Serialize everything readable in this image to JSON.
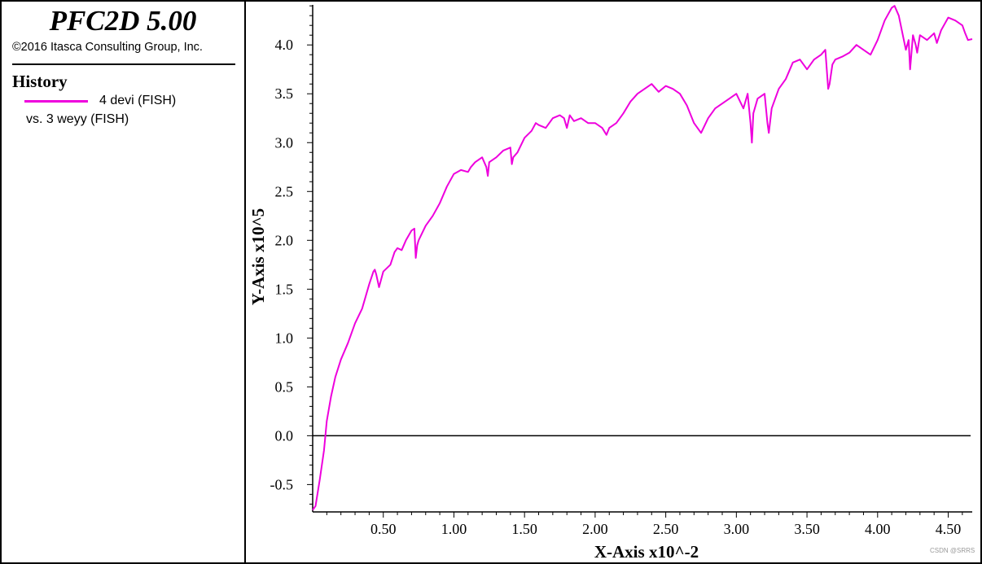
{
  "app": {
    "title": "PFC2D 5.00",
    "copyright": "©2016 Itasca Consulting Group, Inc."
  },
  "legend": {
    "heading": "History",
    "series_label": "4 devi (FISH)",
    "vs_label": "vs. 3 weyy (FISH)",
    "series_color": "#ee00dd"
  },
  "watermark": "CSDN @SRRS",
  "chart_data": {
    "type": "line",
    "xlabel": "X-Axis x10^-2",
    "ylabel": "Y-Axis x10^5",
    "xlim": [
      0,
      4.67
    ],
    "ylim": [
      -0.78,
      4.41
    ],
    "x_ticks": [
      0.5,
      1.0,
      1.5,
      2.0,
      2.5,
      3.0,
      3.5,
      4.0,
      4.5
    ],
    "x_tick_labels": [
      "0.50",
      "1.00",
      "1.50",
      "2.00",
      "2.50",
      "3.00",
      "3.50",
      "4.00",
      "4.50"
    ],
    "y_ticks": [
      -0.5,
      0.0,
      0.5,
      1.0,
      1.5,
      2.0,
      2.5,
      3.0,
      3.5,
      4.0
    ],
    "y_tick_labels": [
      "-0.5",
      "0.0",
      "0.5",
      "1.0",
      "1.5",
      "2.0",
      "2.5",
      "3.0",
      "3.5",
      "4.0"
    ],
    "zero_line": 0,
    "grid": false,
    "series": [
      {
        "color": "#ee00dd",
        "x": [
          0.0,
          0.02,
          0.05,
          0.08,
          0.1,
          0.13,
          0.16,
          0.2,
          0.25,
          0.3,
          0.35,
          0.4,
          0.43,
          0.44,
          0.45,
          0.47,
          0.5,
          0.55,
          0.58,
          0.6,
          0.63,
          0.66,
          0.7,
          0.72,
          0.73,
          0.74,
          0.75,
          0.8,
          0.85,
          0.9,
          0.95,
          1.0,
          1.05,
          1.1,
          1.12,
          1.15,
          1.2,
          1.23,
          1.24,
          1.25,
          1.3,
          1.35,
          1.4,
          1.41,
          1.42,
          1.45,
          1.5,
          1.55,
          1.58,
          1.6,
          1.65,
          1.7,
          1.75,
          1.78,
          1.8,
          1.82,
          1.85,
          1.9,
          1.95,
          2.0,
          2.05,
          2.08,
          2.1,
          2.15,
          2.2,
          2.25,
          2.3,
          2.35,
          2.4,
          2.45,
          2.5,
          2.55,
          2.6,
          2.65,
          2.7,
          2.75,
          2.8,
          2.85,
          2.9,
          2.95,
          3.0,
          3.05,
          3.08,
          3.1,
          3.11,
          3.12,
          3.15,
          3.2,
          3.22,
          3.23,
          3.25,
          3.3,
          3.35,
          3.4,
          3.45,
          3.5,
          3.55,
          3.6,
          3.63,
          3.65,
          3.66,
          3.68,
          3.7,
          3.75,
          3.8,
          3.85,
          3.9,
          3.95,
          4.0,
          4.05,
          4.1,
          4.12,
          4.15,
          4.2,
          4.22,
          4.23,
          4.25,
          4.27,
          4.28,
          4.3,
          4.35,
          4.4,
          4.42,
          4.45,
          4.5,
          4.55,
          4.6,
          4.62,
          4.64,
          4.67
        ],
        "y": [
          -0.76,
          -0.72,
          -0.45,
          -0.15,
          0.15,
          0.4,
          0.6,
          0.78,
          0.95,
          1.15,
          1.3,
          1.55,
          1.68,
          1.7,
          1.65,
          1.52,
          1.68,
          1.75,
          1.88,
          1.92,
          1.9,
          2.0,
          2.1,
          2.12,
          1.82,
          1.95,
          2.0,
          2.15,
          2.25,
          2.38,
          2.55,
          2.68,
          2.72,
          2.7,
          2.75,
          2.8,
          2.85,
          2.75,
          2.66,
          2.8,
          2.85,
          2.92,
          2.95,
          2.78,
          2.85,
          2.9,
          3.05,
          3.12,
          3.2,
          3.18,
          3.15,
          3.25,
          3.28,
          3.25,
          3.15,
          3.28,
          3.22,
          3.25,
          3.2,
          3.2,
          3.15,
          3.08,
          3.15,
          3.2,
          3.3,
          3.42,
          3.5,
          3.55,
          3.6,
          3.52,
          3.58,
          3.55,
          3.5,
          3.38,
          3.2,
          3.1,
          3.25,
          3.35,
          3.4,
          3.45,
          3.5,
          3.35,
          3.5,
          3.2,
          3.0,
          3.3,
          3.45,
          3.5,
          3.2,
          3.1,
          3.35,
          3.55,
          3.65,
          3.82,
          3.85,
          3.75,
          3.85,
          3.9,
          3.95,
          3.55,
          3.6,
          3.8,
          3.85,
          3.88,
          3.92,
          4.0,
          3.95,
          3.9,
          4.05,
          4.25,
          4.38,
          4.4,
          4.3,
          3.95,
          4.05,
          3.75,
          4.1,
          4.0,
          3.92,
          4.1,
          4.05,
          4.12,
          4.02,
          4.15,
          4.28,
          4.25,
          4.2,
          4.12,
          4.05,
          4.06
        ]
      }
    ]
  }
}
